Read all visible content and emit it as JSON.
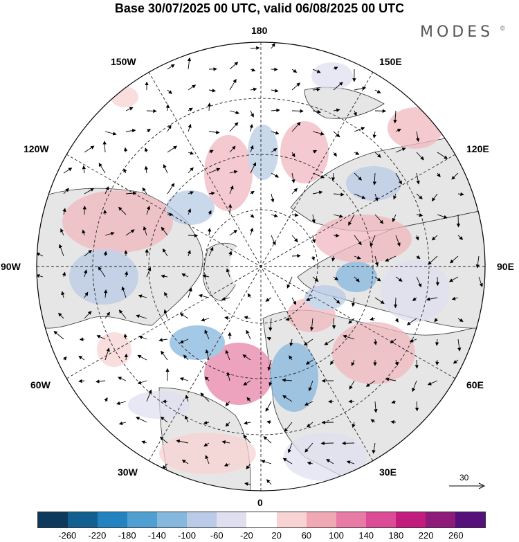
{
  "title": "Base 30/07/2025 00 UTC, valid 06/08/2025 00 UTC",
  "brand": {
    "name": "MODES",
    "mark": "©"
  },
  "meridian_labels": {
    "top": "180",
    "bottom": "0",
    "left": "90W",
    "right": "90E",
    "w150": "150W",
    "e150": "150E",
    "w120": "120W",
    "e120": "120E",
    "w60": "60W",
    "e60": "60E",
    "w30": "30W",
    "e30": "30E"
  },
  "reference_vector": {
    "value": "30",
    "icon": "arrow-right-icon"
  },
  "colorbar": {
    "colors": [
      "#0d3a5c",
      "#12608f",
      "#2383c0",
      "#4f9fd1",
      "#86b8de",
      "#b9cbe6",
      "#e0dff0",
      "#ffffff",
      "#f8d3d3",
      "#f1a8b5",
      "#e87aa6",
      "#dc4b96",
      "#c21c7e",
      "#8e1a7a",
      "#55107a"
    ],
    "ticks": [
      "-260",
      "-220",
      "-180",
      "-140",
      "-100",
      "-60",
      "-20",
      "20",
      "60",
      "100",
      "140",
      "180",
      "220",
      "260"
    ]
  },
  "anomaly_colors": {
    "positive": "#f1b8bf",
    "positive_strong": "#e885a8",
    "negative": "#b8c6e4",
    "negative_strong": "#6e9ccd",
    "land": "#e6e6e6",
    "ocean": "#ffffff"
  }
}
